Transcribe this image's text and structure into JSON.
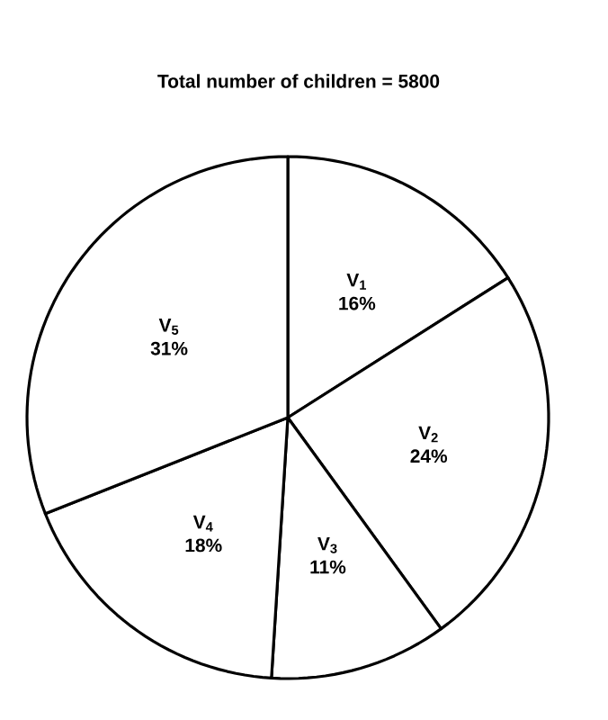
{
  "chart_data": {
    "type": "pie",
    "title": "Total number of children = 5800",
    "categories": [
      "V$_{1}$",
      "V$_{2}$",
      "V$_{3}$",
      "V$_{4}$",
      "V$_{5}$"
    ],
    "values": [
      16,
      24,
      11,
      18,
      31
    ],
    "colors": [
      "#ffffff",
      "#ffffff",
      "#ffffff",
      "#ffffff",
      "#ffffff"
    ],
    "value_labels": [
      "16%",
      "24%",
      "11%",
      "18%",
      "31%"
    ]
  }
}
